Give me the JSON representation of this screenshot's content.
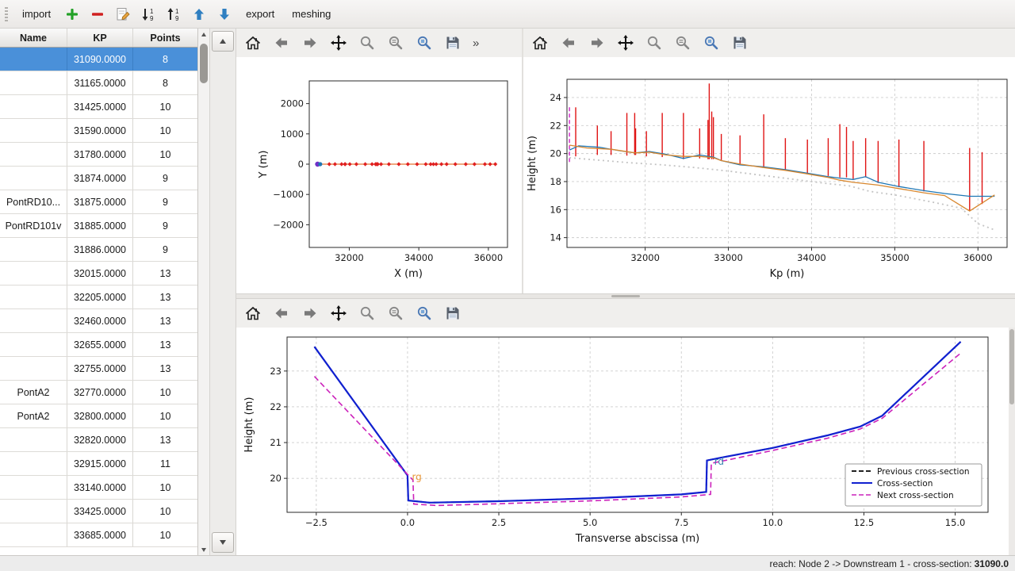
{
  "window": {
    "accent": "#4a90d9"
  },
  "toolbar": {
    "buttons": [
      {
        "name": "import",
        "type": "text",
        "label": "import"
      },
      {
        "name": "add-cross-section",
        "type": "icon",
        "icon": "plus-icon"
      },
      {
        "name": "remove-cross-section",
        "type": "icon",
        "icon": "minus-icon"
      },
      {
        "name": "edit-cross-section",
        "type": "icon",
        "icon": "edit-icon"
      },
      {
        "name": "sort-descending",
        "type": "icon",
        "icon": "sort-desc-icon"
      },
      {
        "name": "sort-ascending",
        "type": "icon",
        "icon": "sort-asc-icon"
      },
      {
        "name": "move-up",
        "type": "icon",
        "icon": "arrow-up-icon"
      },
      {
        "name": "move-down",
        "type": "icon",
        "icon": "arrow-down-icon"
      },
      {
        "name": "export",
        "type": "text",
        "label": "export"
      },
      {
        "name": "meshing",
        "type": "text",
        "label": "meshing"
      }
    ]
  },
  "plot_toolbar": {
    "icons": [
      "home",
      "back",
      "forward",
      "pan",
      "zoom",
      "subplots",
      "zoom-rect",
      "save"
    ],
    "overflow_label": "»"
  },
  "table": {
    "columns": [
      "Name",
      "KP",
      "Points"
    ],
    "selected_index": 0,
    "rows": [
      {
        "name": "",
        "kp": "31090.0000",
        "points": "8"
      },
      {
        "name": "",
        "kp": "31165.0000",
        "points": "8"
      },
      {
        "name": "",
        "kp": "31425.0000",
        "points": "10"
      },
      {
        "name": "",
        "kp": "31590.0000",
        "points": "10"
      },
      {
        "name": "",
        "kp": "31780.0000",
        "points": "10"
      },
      {
        "name": "",
        "kp": "31874.0000",
        "points": "9"
      },
      {
        "name": "PontRD10...",
        "kp": "31875.0000",
        "points": "9"
      },
      {
        "name": "PontRD101v",
        "kp": "31885.0000",
        "points": "9"
      },
      {
        "name": "",
        "kp": "31886.0000",
        "points": "9"
      },
      {
        "name": "",
        "kp": "32015.0000",
        "points": "13"
      },
      {
        "name": "",
        "kp": "32205.0000",
        "points": "13"
      },
      {
        "name": "",
        "kp": "32460.0000",
        "points": "13"
      },
      {
        "name": "",
        "kp": "32655.0000",
        "points": "13"
      },
      {
        "name": "",
        "kp": "32755.0000",
        "points": "13"
      },
      {
        "name": "PontA2",
        "kp": "32770.0000",
        "points": "10"
      },
      {
        "name": "PontA2",
        "kp": "32800.0000",
        "points": "10"
      },
      {
        "name": "",
        "kp": "32820.0000",
        "points": "13"
      },
      {
        "name": "",
        "kp": "32915.0000",
        "points": "11"
      },
      {
        "name": "",
        "kp": "33140.0000",
        "points": "10"
      },
      {
        "name": "",
        "kp": "33425.0000",
        "points": "10"
      },
      {
        "name": "",
        "kp": "33685.0000",
        "points": "10"
      }
    ]
  },
  "status": {
    "prefix": "reach: Node 2 -> Downstream 1 - cross-section: ",
    "value": "31090.0"
  },
  "chart_data": [
    {
      "id": "plan",
      "type": "scatter",
      "title": "",
      "xlabel": "X (m)",
      "ylabel": "Y (m)",
      "xlim": [
        30850,
        36550
      ],
      "ylim": [
        -2750,
        2750
      ],
      "xticks": [
        32000,
        34000,
        36000
      ],
      "xtick_labels": [
        "32000",
        "34000",
        "36000"
      ],
      "yticks": [
        -2000,
        -1000,
        0,
        1000,
        2000
      ],
      "ytick_labels": [
        "−2000",
        "−1000",
        "0",
        "1000",
        "2000"
      ],
      "grid": false,
      "series": [
        {
          "name": "river-axis",
          "type": "line",
          "color": "#e87430",
          "width": 1.2,
          "points": [
            [
              31090,
              0
            ],
            [
              36200,
              0
            ]
          ]
        },
        {
          "name": "cross-section-markers",
          "type": "points",
          "marker": "diamond",
          "color": "#e02020",
          "size": 2.6,
          "y_const": 0,
          "x": [
            31090,
            31165,
            31425,
            31590,
            31780,
            31874,
            31885,
            32015,
            32205,
            32460,
            32655,
            32755,
            32770,
            32800,
            32820,
            32915,
            33140,
            33425,
            33685,
            33950,
            34200,
            34340,
            34420,
            34500,
            34650,
            34800,
            35050,
            35350,
            35600,
            35900,
            36050,
            36200
          ]
        },
        {
          "name": "selected-cross-section-marker",
          "type": "points",
          "marker": "circle",
          "color": "#7030c8",
          "size": 3.2,
          "y_const": 0,
          "x": [
            31090
          ]
        },
        {
          "name": "start-marker",
          "type": "points",
          "marker": "circle",
          "color": "#1f77b4",
          "size": 2.6,
          "y_const": 0,
          "x": [
            31165
          ]
        }
      ]
    },
    {
      "id": "profile",
      "type": "line",
      "title": "",
      "xlabel": "Kp (m)",
      "ylabel": "Height (m)",
      "xlim": [
        31060,
        36350
      ],
      "ylim": [
        13.3,
        25.3
      ],
      "xticks": [
        32000,
        33000,
        34000,
        35000,
        36000
      ],
      "xtick_labels": [
        "32000",
        "33000",
        "34000",
        "35000",
        "36000"
      ],
      "yticks": [
        14,
        16,
        18,
        20,
        22,
        24
      ],
      "ytick_labels": [
        "14",
        "16",
        "18",
        "20",
        "22",
        "24"
      ],
      "grid": true,
      "series": [
        {
          "name": "cross-section-extents",
          "type": "vlines",
          "color": "#e01414",
          "width": 1.4,
          "segments": [
            [
              31165,
              19.8,
              23.3
            ],
            [
              31425,
              19.9,
              22.0
            ],
            [
              31590,
              19.9,
              21.6
            ],
            [
              31780,
              19.85,
              22.9
            ],
            [
              31874,
              19.9,
              22.9
            ],
            [
              31885,
              19.9,
              21.8
            ],
            [
              32015,
              19.8,
              21.6
            ],
            [
              32205,
              19.75,
              22.9
            ],
            [
              32460,
              19.6,
              22.9
            ],
            [
              32655,
              19.65,
              21.8
            ],
            [
              32755,
              19.6,
              22.4
            ],
            [
              32770,
              19.6,
              25.0
            ],
            [
              32800,
              19.6,
              23.0
            ],
            [
              32820,
              19.6,
              22.6
            ],
            [
              32915,
              19.5,
              21.4
            ],
            [
              33140,
              19.2,
              21.3
            ],
            [
              33425,
              19.0,
              22.8
            ],
            [
              33685,
              18.8,
              21.1
            ],
            [
              33950,
              18.6,
              21.0
            ],
            [
              34200,
              18.4,
              21.1
            ],
            [
              34340,
              18.3,
              22.1
            ],
            [
              34420,
              18.3,
              21.9
            ],
            [
              34500,
              18.2,
              20.9
            ],
            [
              34650,
              18.3,
              21.1
            ],
            [
              34800,
              17.9,
              20.9
            ],
            [
              35050,
              17.6,
              21.0
            ],
            [
              35350,
              17.3,
              20.9
            ],
            [
              35900,
              15.9,
              20.4
            ],
            [
              36050,
              16.4,
              20.1
            ]
          ]
        },
        {
          "name": "current-cross-section",
          "type": "vlines",
          "color": "#d63fd0",
          "width": 1.6,
          "dash": "5,3",
          "segments": [
            [
              31090,
              19.4,
              23.4
            ]
          ]
        },
        {
          "name": "left-bank",
          "type": "line",
          "color": "#1f77b4",
          "width": 1.3,
          "points": [
            [
              31090,
              20.25
            ],
            [
              31200,
              20.55
            ],
            [
              31450,
              20.45
            ],
            [
              31700,
              20.2
            ],
            [
              31880,
              20.05
            ],
            [
              32050,
              20.15
            ],
            [
              32250,
              19.95
            ],
            [
              32460,
              19.65
            ],
            [
              32650,
              19.9
            ],
            [
              32820,
              19.75
            ],
            [
              32915,
              19.5
            ],
            [
              33140,
              19.2
            ],
            [
              33425,
              19.05
            ],
            [
              33685,
              18.85
            ],
            [
              33950,
              18.6
            ],
            [
              34200,
              18.35
            ],
            [
              34340,
              18.25
            ],
            [
              34500,
              18.15
            ],
            [
              34650,
              18.35
            ],
            [
              34800,
              17.95
            ],
            [
              35050,
              17.65
            ],
            [
              35350,
              17.35
            ],
            [
              35600,
              17.15
            ],
            [
              35900,
              16.95
            ],
            [
              36200,
              16.95
            ]
          ]
        },
        {
          "name": "right-bank",
          "type": "line",
          "color": "#d8872e",
          "width": 1.3,
          "points": [
            [
              31090,
              20.6
            ],
            [
              31300,
              20.4
            ],
            [
              31600,
              20.3
            ],
            [
              31880,
              20.05
            ],
            [
              32050,
              20.1
            ],
            [
              32250,
              19.9
            ],
            [
              32460,
              19.8
            ],
            [
              32650,
              19.8
            ],
            [
              32820,
              19.7
            ],
            [
              32915,
              19.5
            ],
            [
              33140,
              19.25
            ],
            [
              33425,
              19.0
            ],
            [
              33685,
              18.8
            ],
            [
              33950,
              18.55
            ],
            [
              34200,
              18.3
            ],
            [
              34340,
              18.1
            ],
            [
              34500,
              17.95
            ],
            [
              34650,
              17.85
            ],
            [
              34800,
              17.75
            ],
            [
              35050,
              17.5
            ],
            [
              35350,
              17.2
            ],
            [
              35600,
              17.0
            ],
            [
              35900,
              15.9
            ],
            [
              36200,
              17.05
            ]
          ]
        },
        {
          "name": "river-bottom",
          "type": "line",
          "color": "#c4c4c4",
          "width": 1.8,
          "dash": "2,4",
          "points": [
            [
              31090,
              19.7
            ],
            [
              31400,
              19.55
            ],
            [
              31800,
              19.35
            ],
            [
              32200,
              19.2
            ],
            [
              32600,
              19.0
            ],
            [
              33000,
              18.75
            ],
            [
              33400,
              18.45
            ],
            [
              33800,
              18.15
            ],
            [
              34200,
              17.85
            ],
            [
              34450,
              17.7
            ],
            [
              34700,
              17.3
            ],
            [
              35000,
              17.05
            ],
            [
              35400,
              16.6
            ],
            [
              35800,
              16.1
            ],
            [
              36000,
              15.0
            ],
            [
              36200,
              14.55
            ]
          ]
        }
      ]
    },
    {
      "id": "cross_section",
      "type": "line",
      "title": "",
      "xlabel": "Transverse abscissa (m)",
      "ylabel": "Height (m)",
      "xlim": [
        -3.3,
        15.9
      ],
      "ylim": [
        19.05,
        23.95
      ],
      "xticks": [
        -2.5,
        0,
        2.5,
        5,
        7.5,
        10,
        12.5,
        15
      ],
      "xtick_labels": [
        "−2.5",
        "0.0",
        "2.5",
        "5.0",
        "7.5",
        "10.0",
        "12.5",
        "15.0"
      ],
      "yticks": [
        20,
        21,
        22,
        23
      ],
      "ytick_labels": [
        "20",
        "21",
        "22",
        "23"
      ],
      "grid": true,
      "series": [
        {
          "name": "previous-cross-section",
          "type": "line",
          "color": "#222222",
          "width": 1.8,
          "dash": "7,4",
          "points": [
            [
              -2.55,
              23.68
            ],
            [
              0,
              20.08
            ],
            [
              0.02,
              19.38
            ],
            [
              0.6,
              19.32
            ],
            [
              2.5,
              19.36
            ],
            [
              5,
              19.44
            ],
            [
              7.5,
              19.55
            ],
            [
              8.18,
              19.62
            ],
            [
              8.2,
              20.5
            ],
            [
              8.7,
              20.6
            ],
            [
              10,
              20.85
            ],
            [
              11.5,
              21.2
            ],
            [
              12.4,
              21.45
            ],
            [
              13,
              21.75
            ],
            [
              15.15,
              23.82
            ]
          ]
        },
        {
          "name": "cross-section",
          "type": "line",
          "color": "#1020d0",
          "width": 2.2,
          "points": [
            [
              -2.55,
              23.68
            ],
            [
              0,
              20.08
            ],
            [
              0.02,
              19.38
            ],
            [
              0.6,
              19.32
            ],
            [
              2.5,
              19.36
            ],
            [
              5,
              19.44
            ],
            [
              7.5,
              19.55
            ],
            [
              8.18,
              19.62
            ],
            [
              8.2,
              20.5
            ],
            [
              8.7,
              20.6
            ],
            [
              10,
              20.85
            ],
            [
              11.5,
              21.2
            ],
            [
              12.4,
              21.45
            ],
            [
              13,
              21.75
            ],
            [
              15.15,
              23.82
            ]
          ]
        },
        {
          "name": "next-cross-section",
          "type": "line",
          "color": "#cc22bb",
          "width": 1.6,
          "dash": "7,4",
          "points": [
            [
              -2.55,
              22.85
            ],
            [
              0.15,
              19.95
            ],
            [
              0.17,
              19.28
            ],
            [
              0.8,
              19.24
            ],
            [
              2.5,
              19.29
            ],
            [
              5,
              19.37
            ],
            [
              7.5,
              19.48
            ],
            [
              8.3,
              19.55
            ],
            [
              8.32,
              20.42
            ],
            [
              8.8,
              20.52
            ],
            [
              10,
              20.78
            ],
            [
              11.5,
              21.12
            ],
            [
              12.4,
              21.38
            ],
            [
              13,
              21.68
            ],
            [
              15.15,
              23.5
            ]
          ]
        }
      ],
      "texts": [
        {
          "x": 0.12,
          "y": 19.95,
          "text": "rg",
          "color": "#e8973a",
          "size": 12
        },
        {
          "x": 8.4,
          "y": 20.38,
          "text": "rd",
          "color": "#3a87b0",
          "size": 12
        }
      ],
      "legend": {
        "position": "lower right",
        "entries": [
          {
            "label": "Previous cross-section",
            "color": "#222222",
            "dash": "6,3",
            "width": 2
          },
          {
            "label": "Cross-section",
            "color": "#1020d0",
            "dash": "",
            "width": 2
          },
          {
            "label": "Next cross-section",
            "color": "#cc22bb",
            "dash": "6,3",
            "width": 1.6
          }
        ]
      }
    }
  ]
}
